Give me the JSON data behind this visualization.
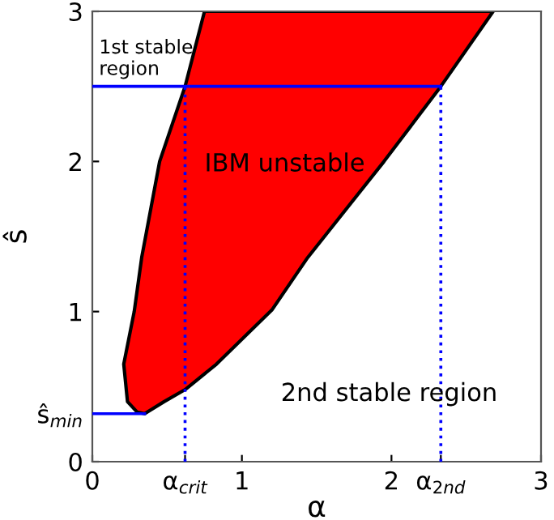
{
  "chart_data": {
    "type": "area",
    "xlabel": "α",
    "ylabel": "ŝ",
    "xlim": [
      0,
      3
    ],
    "ylim": [
      0,
      3
    ],
    "xticks": [
      0,
      {
        "value": 0.62,
        "label": "α$_{crit}$"
      },
      1,
      2,
      {
        "value": 2.33,
        "label": "α$_{2nd}$"
      },
      3
    ],
    "yticks": [
      0,
      {
        "value": 0.32,
        "label": "ŝ$_{min}$"
      },
      1,
      2,
      3
    ],
    "grid": false,
    "series": [
      {
        "color": "#ff0000",
        "x": [
          0.75,
          0.62,
          0.45,
          0.33,
          0.28,
          0.21,
          0.235,
          0.3,
          0.35,
          0.48,
          0.62,
          0.83,
          1.2,
          1.44,
          1.95,
          2.33,
          2.68
        ],
        "values": [
          3,
          2.5,
          2,
          1.36,
          1.0,
          0.65,
          0.4,
          0.33,
          0.32,
          0.4,
          0.48,
          0.65,
          1.01,
          1.36,
          2.0,
          2.5,
          3
        ]
      },
      {
        "type": "line",
        "color": "#0000ff",
        "line_style": "solid",
        "x": [
          0,
          2.33
        ],
        "values": [
          2.5,
          2.5
        ]
      },
      {
        "type": "line",
        "color": "#0000ff",
        "line_style": "solid",
        "x": [
          0,
          0.35
        ],
        "values": [
          0.32,
          0.32
        ]
      },
      {
        "type": "line",
        "color": "#0000ff",
        "line_style": "dotted",
        "x": [
          0.62,
          0.62
        ],
        "values": [
          0,
          2.5
        ]
      },
      {
        "type": "line",
        "color": "#0000ff",
        "line_style": "dotted",
        "x": [
          2.33,
          2.33
        ],
        "values": [
          0,
          2.5
        ]
      }
    ],
    "annotations": [
      "1st stable\nregion",
      "IBM unstable",
      "2nd stable region"
    ]
  }
}
